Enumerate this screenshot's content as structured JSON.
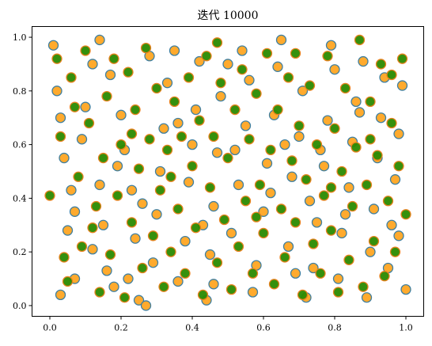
{
  "chart_data": {
    "type": "scatter",
    "title": "迭代 10000",
    "xlabel": "",
    "ylabel": "",
    "xlim": [
      -0.05,
      1.05
    ],
    "ylim": [
      -0.04,
      1.04
    ],
    "x_ticks": [
      0.0,
      0.2,
      0.4,
      0.6,
      0.8,
      1.0
    ],
    "y_ticks": [
      0.0,
      0.2,
      0.4,
      0.6,
      0.8,
      1.0
    ],
    "x_tick_labels": [
      "0.0",
      "0.2",
      "0.4",
      "0.6",
      "0.8",
      "1.0"
    ],
    "y_tick_labels": [
      "0.0",
      "0.2",
      "0.4",
      "0.6",
      "0.8",
      "1.0"
    ],
    "grid": false,
    "legend": "none",
    "series": [
      {
        "marker_fill": "#ffa522",
        "marker_edge": "#3f7fa0",
        "points": [
          [
            0.01,
            0.97
          ],
          [
            0.02,
            0.8
          ],
          [
            0.03,
            0.7
          ],
          [
            0.04,
            0.55
          ],
          [
            0.05,
            0.28
          ],
          [
            0.07,
            0.1
          ],
          [
            0.03,
            0.04
          ],
          [
            0.07,
            0.35
          ],
          [
            0.09,
            0.62
          ],
          [
            0.1,
            0.74
          ],
          [
            0.12,
            0.9
          ],
          [
            0.14,
            0.45
          ],
          [
            0.15,
            0.3
          ],
          [
            0.16,
            0.13
          ],
          [
            0.18,
            0.07
          ],
          [
            0.14,
            0.99
          ],
          [
            0.17,
            0.86
          ],
          [
            0.2,
            0.71
          ],
          [
            0.21,
            0.58
          ],
          [
            0.23,
            0.43
          ],
          [
            0.24,
            0.25
          ],
          [
            0.22,
            0.1
          ],
          [
            0.25,
            0.02
          ],
          [
            0.27,
            0.0
          ],
          [
            0.29,
            0.16
          ],
          [
            0.3,
            0.34
          ],
          [
            0.31,
            0.5
          ],
          [
            0.32,
            0.66
          ],
          [
            0.33,
            0.83
          ],
          [
            0.35,
            0.95
          ],
          [
            0.36,
            0.09
          ],
          [
            0.38,
            0.24
          ],
          [
            0.39,
            0.46
          ],
          [
            0.4,
            0.6
          ],
          [
            0.41,
            0.73
          ],
          [
            0.42,
            0.91
          ],
          [
            0.44,
            0.02
          ],
          [
            0.45,
            0.19
          ],
          [
            0.46,
            0.37
          ],
          [
            0.47,
            0.57
          ],
          [
            0.48,
            0.78
          ],
          [
            0.5,
            0.9
          ],
          [
            0.51,
            0.27
          ],
          [
            0.53,
            0.45
          ],
          [
            0.55,
            0.67
          ],
          [
            0.56,
            0.84
          ],
          [
            0.57,
            0.05
          ],
          [
            0.58,
            0.15
          ],
          [
            0.6,
            0.35
          ],
          [
            0.61,
            0.53
          ],
          [
            0.63,
            0.71
          ],
          [
            0.64,
            0.89
          ],
          [
            0.65,
            0.99
          ],
          [
            0.67,
            0.22
          ],
          [
            0.68,
            0.48
          ],
          [
            0.7,
            0.63
          ],
          [
            0.71,
            0.8
          ],
          [
            0.72,
            0.03
          ],
          [
            0.74,
            0.14
          ],
          [
            0.75,
            0.31
          ],
          [
            0.77,
            0.52
          ],
          [
            0.78,
            0.69
          ],
          [
            0.79,
            0.97
          ],
          [
            0.81,
            0.1
          ],
          [
            0.82,
            0.27
          ],
          [
            0.84,
            0.44
          ],
          [
            0.85,
            0.61
          ],
          [
            0.86,
            0.76
          ],
          [
            0.88,
            0.91
          ],
          [
            0.89,
            0.03
          ],
          [
            0.9,
            0.2
          ],
          [
            0.91,
            0.36
          ],
          [
            0.92,
            0.55
          ],
          [
            0.93,
            0.7
          ],
          [
            0.94,
            0.85
          ],
          [
            0.95,
            0.14
          ],
          [
            0.96,
            0.3
          ],
          [
            0.97,
            0.47
          ],
          [
            0.98,
            0.64
          ],
          [
            0.99,
            0.82
          ],
          [
            1.0,
            0.06
          ],
          [
            0.98,
            0.26
          ],
          [
            0.12,
            0.21
          ],
          [
            0.26,
            0.38
          ],
          [
            0.36,
            0.68
          ],
          [
            0.46,
            0.08
          ],
          [
            0.52,
            0.58
          ],
          [
            0.62,
            0.42
          ],
          [
            0.69,
            0.12
          ],
          [
            0.76,
            0.58
          ],
          [
            0.83,
            0.34
          ],
          [
            0.87,
            0.72
          ],
          [
            0.06,
            0.43
          ],
          [
            0.19,
            0.52
          ],
          [
            0.28,
            0.93
          ],
          [
            0.43,
            0.3
          ],
          [
            0.54,
            0.95
          ],
          [
            0.66,
            0.6
          ],
          [
            0.73,
            0.39
          ],
          [
            0.8,
            0.88
          ]
        ]
      },
      {
        "marker_fill": "#2a8a00",
        "marker_edge": "#e8821e",
        "points": [
          [
            0.0,
            0.41
          ],
          [
            0.02,
            0.92
          ],
          [
            0.03,
            0.63
          ],
          [
            0.04,
            0.18
          ],
          [
            0.05,
            0.09
          ],
          [
            0.06,
            0.85
          ],
          [
            0.08,
            0.48
          ],
          [
            0.09,
            0.22
          ],
          [
            0.1,
            0.95
          ],
          [
            0.11,
            0.68
          ],
          [
            0.13,
            0.37
          ],
          [
            0.14,
            0.05
          ],
          [
            0.15,
            0.55
          ],
          [
            0.16,
            0.78
          ],
          [
            0.17,
            0.19
          ],
          [
            0.18,
            0.92
          ],
          [
            0.19,
            0.41
          ],
          [
            0.2,
            0.6
          ],
          [
            0.21,
            0.03
          ],
          [
            0.22,
            0.87
          ],
          [
            0.23,
            0.31
          ],
          [
            0.24,
            0.73
          ],
          [
            0.25,
            0.51
          ],
          [
            0.26,
            0.14
          ],
          [
            0.27,
            0.96
          ],
          [
            0.28,
            0.62
          ],
          [
            0.29,
            0.26
          ],
          [
            0.3,
            0.81
          ],
          [
            0.31,
            0.43
          ],
          [
            0.32,
            0.07
          ],
          [
            0.33,
            0.58
          ],
          [
            0.34,
            0.2
          ],
          [
            0.35,
            0.76
          ],
          [
            0.36,
            0.36
          ],
          [
            0.37,
            0.63
          ],
          [
            0.38,
            0.12
          ],
          [
            0.39,
            0.85
          ],
          [
            0.4,
            0.52
          ],
          [
            0.41,
            0.29
          ],
          [
            0.42,
            0.69
          ],
          [
            0.43,
            0.04
          ],
          [
            0.44,
            0.93
          ],
          [
            0.45,
            0.44
          ],
          [
            0.46,
            0.63
          ],
          [
            0.47,
            0.16
          ],
          [
            0.48,
            0.83
          ],
          [
            0.49,
            0.32
          ],
          [
            0.5,
            0.55
          ],
          [
            0.51,
            0.06
          ],
          [
            0.52,
            0.73
          ],
          [
            0.53,
            0.22
          ],
          [
            0.54,
            0.88
          ],
          [
            0.55,
            0.39
          ],
          [
            0.56,
            0.62
          ],
          [
            0.57,
            0.12
          ],
          [
            0.58,
            0.79
          ],
          [
            0.59,
            0.45
          ],
          [
            0.6,
            0.27
          ],
          [
            0.61,
            0.94
          ],
          [
            0.62,
            0.58
          ],
          [
            0.63,
            0.08
          ],
          [
            0.64,
            0.73
          ],
          [
            0.65,
            0.36
          ],
          [
            0.66,
            0.18
          ],
          [
            0.67,
            0.85
          ],
          [
            0.68,
            0.54
          ],
          [
            0.69,
            0.31
          ],
          [
            0.7,
            0.67
          ],
          [
            0.71,
            0.04
          ],
          [
            0.72,
            0.47
          ],
          [
            0.73,
            0.82
          ],
          [
            0.74,
            0.23
          ],
          [
            0.75,
            0.6
          ],
          [
            0.76,
            0.12
          ],
          [
            0.77,
            0.41
          ],
          [
            0.78,
            0.93
          ],
          [
            0.79,
            0.28
          ],
          [
            0.8,
            0.66
          ],
          [
            0.81,
            0.05
          ],
          [
            0.82,
            0.5
          ],
          [
            0.83,
            0.81
          ],
          [
            0.84,
            0.17
          ],
          [
            0.85,
            0.37
          ],
          [
            0.86,
            0.59
          ],
          [
            0.87,
            0.99
          ],
          [
            0.88,
            0.07
          ],
          [
            0.89,
            0.45
          ],
          [
            0.9,
            0.76
          ],
          [
            0.91,
            0.24
          ],
          [
            0.92,
            0.56
          ],
          [
            0.93,
            0.9
          ],
          [
            0.94,
            0.11
          ],
          [
            0.95,
            0.39
          ],
          [
            0.96,
            0.68
          ],
          [
            0.97,
            0.2
          ],
          [
            0.98,
            0.52
          ],
          [
            0.99,
            0.92
          ],
          [
            1.0,
            0.34
          ],
          [
            0.07,
            0.74
          ],
          [
            0.12,
            0.29
          ],
          [
            0.23,
            0.64
          ],
          [
            0.34,
            0.48
          ],
          [
            0.47,
            0.98
          ],
          [
            0.58,
            0.33
          ],
          [
            0.69,
            0.94
          ],
          [
            0.79,
            0.44
          ],
          [
            0.9,
            0.62
          ],
          [
            0.96,
            0.86
          ]
        ]
      }
    ]
  }
}
